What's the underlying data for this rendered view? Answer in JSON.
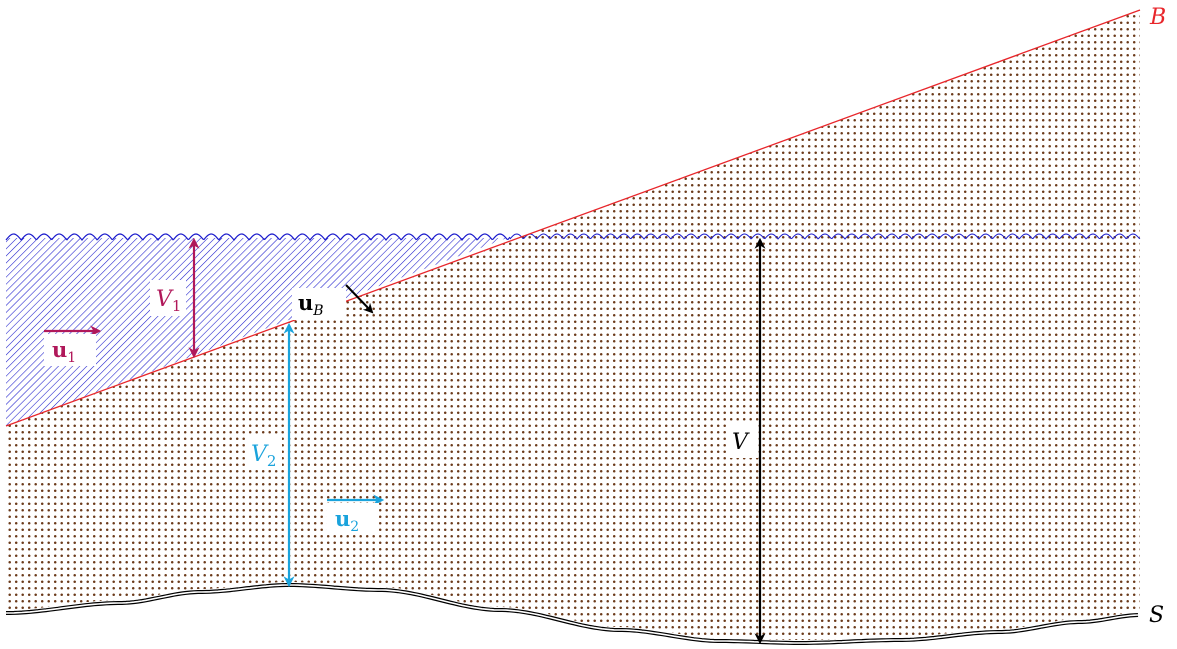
{
  "labels": {
    "B": "B",
    "S": "S",
    "V": "V",
    "V1": "V",
    "V1_sub": "1",
    "V2": "V",
    "V2_sub": "2",
    "u1": "u",
    "u1_sub": "1",
    "u2": "u",
    "u2_sub": "2",
    "uB": "u",
    "uB_sub": "B"
  },
  "colors": {
    "boundary_B": "#e8262b",
    "surface_wave": "#1a1acc",
    "hatch_region": "#1a1acc",
    "dots": "#6b3a1a",
    "V1": "#b0185a",
    "u1": "#b0185a",
    "V2": "#1aa3dc",
    "u2": "#1aa3dc",
    "V": "#000000",
    "uB": "#000000",
    "bed": "#000000"
  }
}
